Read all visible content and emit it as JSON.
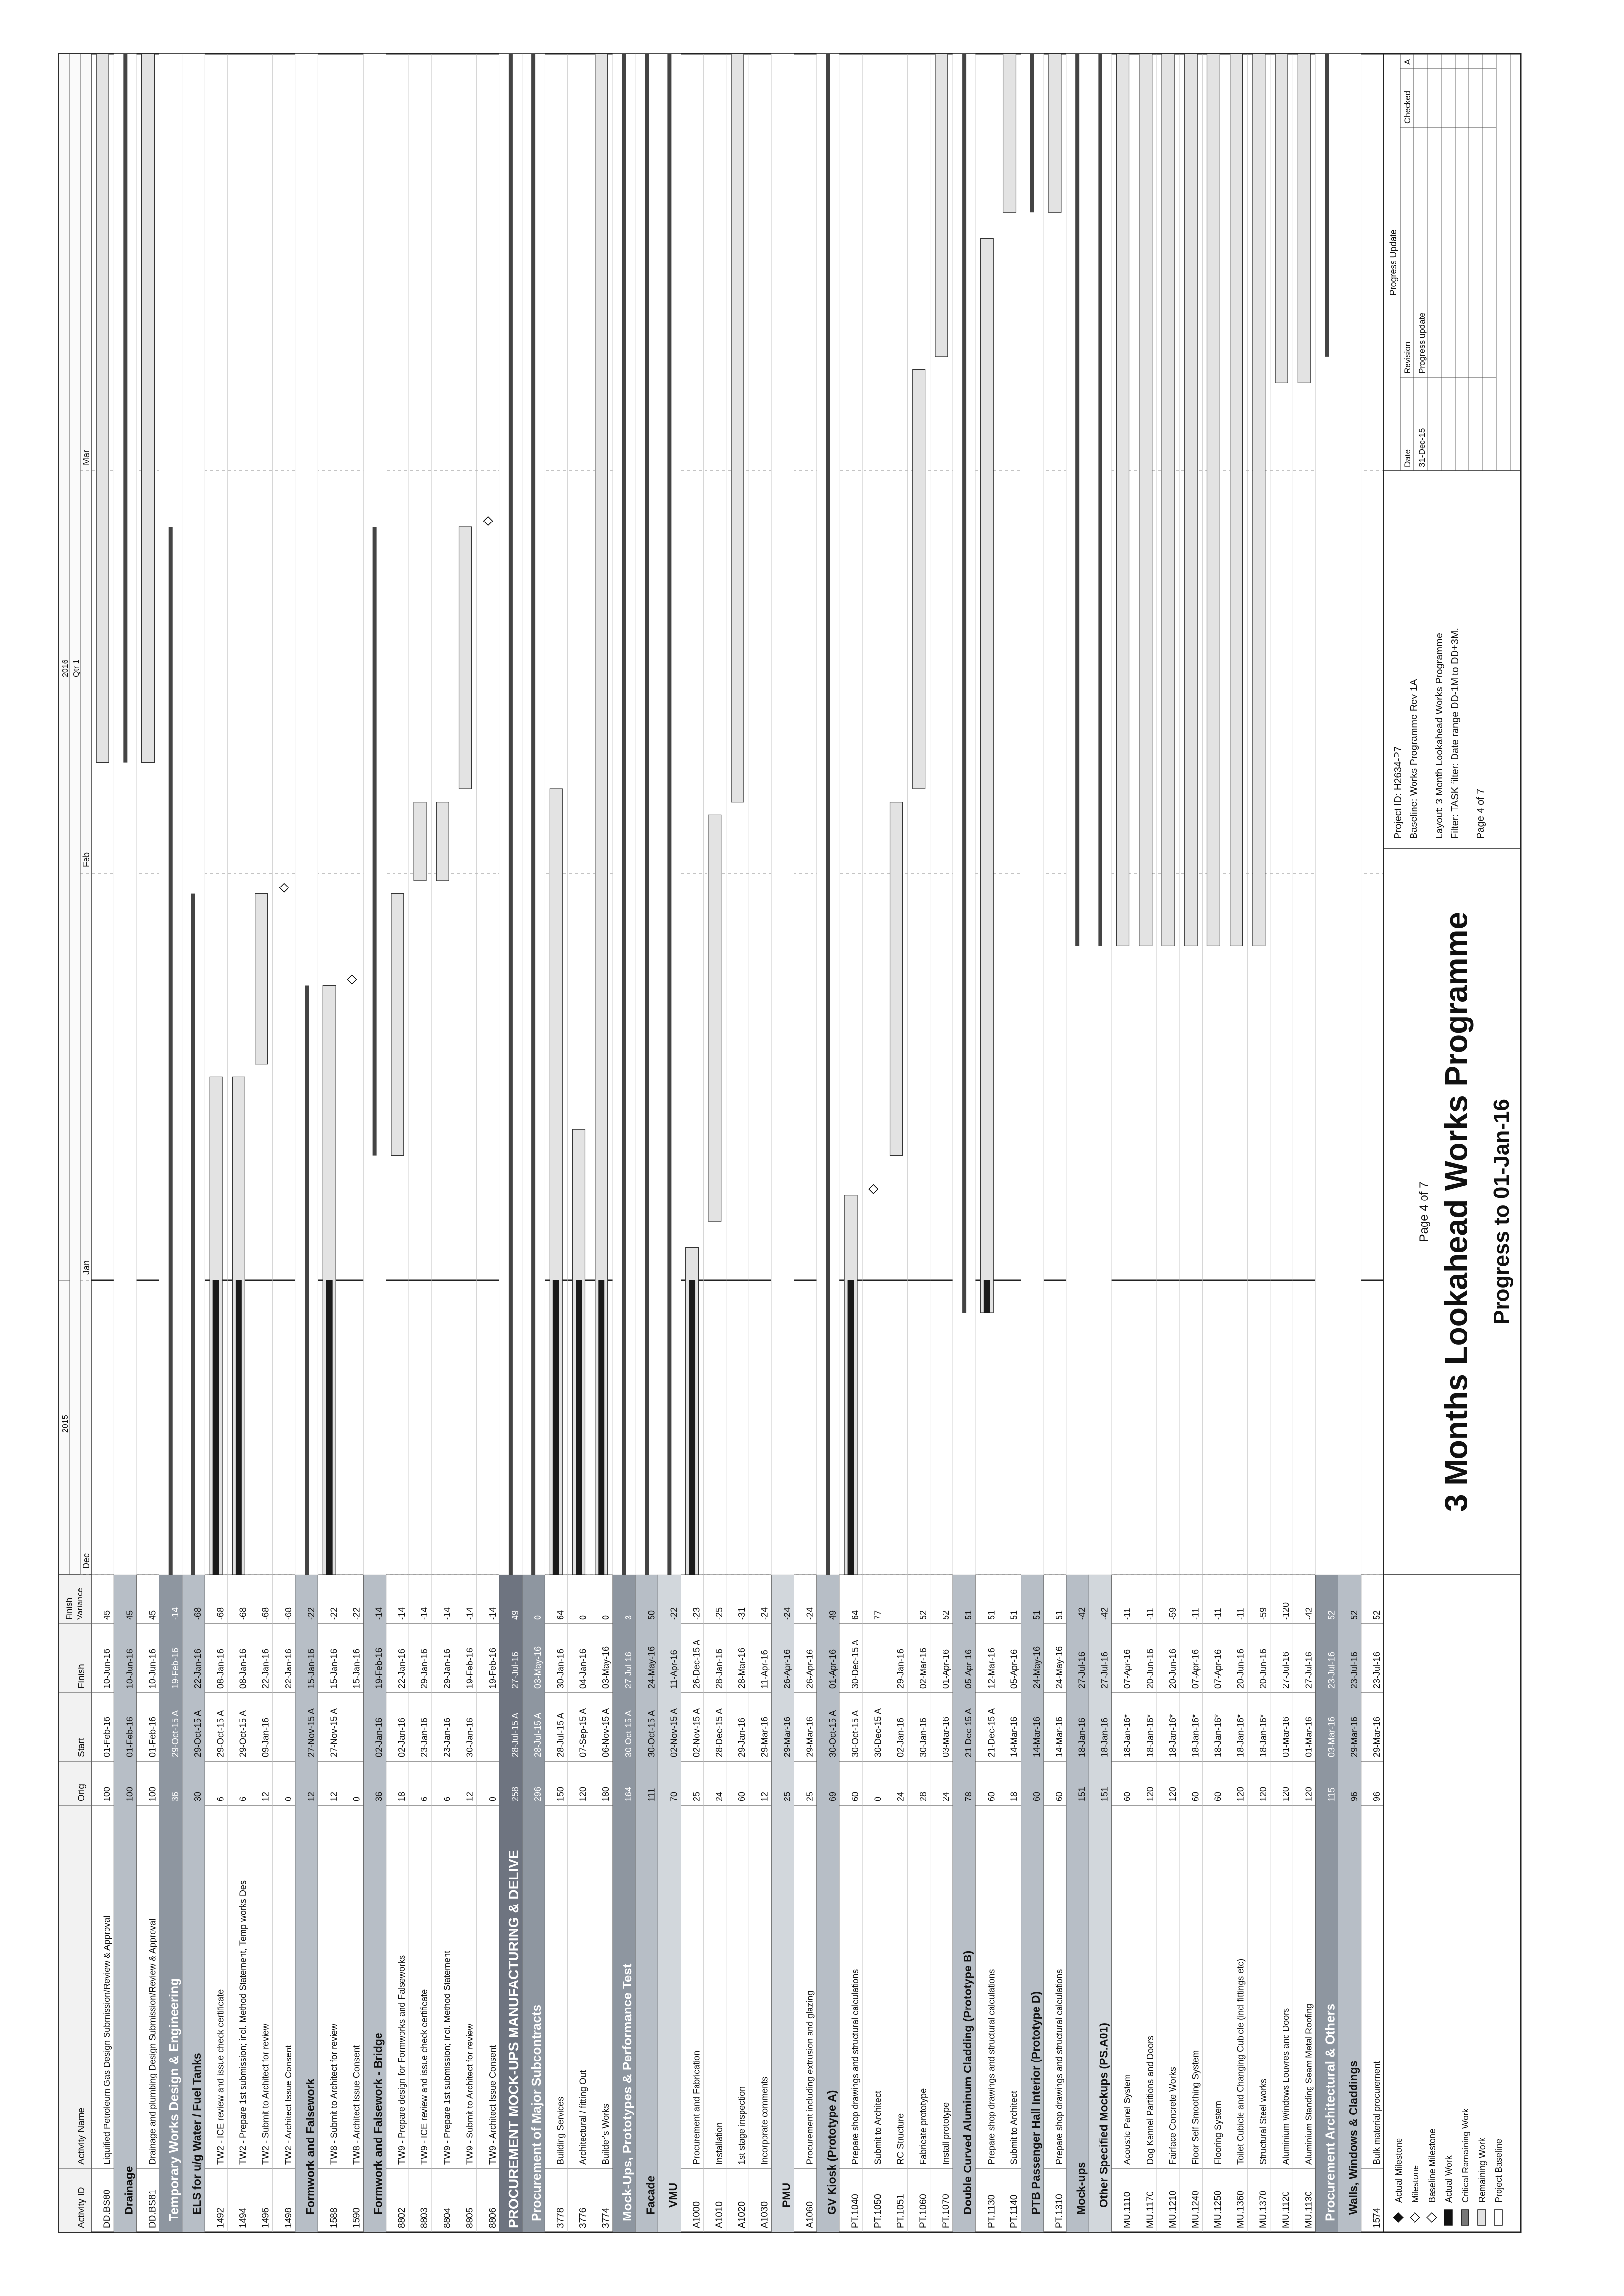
{
  "columns": {
    "activity_id": "Activity ID",
    "activity_name": "Activity Name",
    "orig": "Orig",
    "start": "Start",
    "finish": "Finish",
    "variance": "Finish Variance"
  },
  "timeline": {
    "years": [
      "2015",
      "2016"
    ],
    "qtr": "Qtr 1",
    "months": [
      "Dec",
      "Jan",
      "Feb",
      "Mar"
    ]
  },
  "rows": [
    {
      "type": "activity",
      "id": "DD.BS80",
      "name": "Liquified Petroleum Gas Design Submission/Review & Approval",
      "orig": "100",
      "start": "01-Feb-16",
      "finish": "10-Jun-16",
      "variance": "45"
    },
    {
      "type": "group",
      "level": 2,
      "name": "Drainage",
      "orig": "100",
      "start": "01-Feb-16",
      "finish": "10-Jun-16",
      "variance": "45"
    },
    {
      "type": "activity",
      "id": "DD.BS81",
      "name": "Drainage and plumbing Design Submission/Review & Approval",
      "orig": "100",
      "start": "01-Feb-16",
      "finish": "10-Jun-16",
      "variance": "45"
    },
    {
      "type": "group",
      "level": 1,
      "name": "Temporary Works Design & Engineering",
      "orig": "36",
      "start": "29-Oct-15 A",
      "finish": "19-Feb-16",
      "variance": "-14"
    },
    {
      "type": "group",
      "level": 2,
      "name": "ELS for u/g Water / Fuel Tanks",
      "orig": "30",
      "start": "29-Oct-15 A",
      "finish": "22-Jan-16",
      "variance": "-68"
    },
    {
      "type": "activity",
      "id": "1492",
      "name": "TW2 - ICE review and issue check certificate",
      "orig": "6",
      "start": "29-Oct-15 A",
      "finish": "08-Jan-16",
      "variance": "-68"
    },
    {
      "type": "activity",
      "id": "1494",
      "name": "TW2 - Prepare 1st submission; incl. Method Statement, Temp works Des",
      "orig": "6",
      "start": "29-Oct-15 A",
      "finish": "08-Jan-16",
      "variance": "-68"
    },
    {
      "type": "activity",
      "id": "1496",
      "name": "TW2 - Submit to Architect for review",
      "orig": "12",
      "start": "09-Jan-16",
      "finish": "22-Jan-16",
      "variance": "-68"
    },
    {
      "type": "activity",
      "id": "1498",
      "name": "TW2 - Architect Issue Consent",
      "orig": "0",
      "start": "",
      "finish": "22-Jan-16",
      "variance": "-68"
    },
    {
      "type": "group",
      "level": 2,
      "name": "Formwork and Falsework",
      "orig": "12",
      "start": "27-Nov-15 A",
      "finish": "15-Jan-16",
      "variance": "-22"
    },
    {
      "type": "activity",
      "id": "1588",
      "name": "TW8 - Submit to Architect for review",
      "orig": "12",
      "start": "27-Nov-15 A",
      "finish": "15-Jan-16",
      "variance": "-22"
    },
    {
      "type": "activity",
      "id": "1590",
      "name": "TW8 - Architect Issue Consent",
      "orig": "0",
      "start": "",
      "finish": "15-Jan-16",
      "variance": "-22"
    },
    {
      "type": "group",
      "level": 2,
      "name": "Formwork and Falsework - Bridge",
      "orig": "36",
      "start": "02-Jan-16",
      "finish": "19-Feb-16",
      "variance": "-14"
    },
    {
      "type": "activity",
      "id": "8802",
      "name": "TW9 - Prepare design for Formworks and Falseworks",
      "orig": "18",
      "start": "02-Jan-16",
      "finish": "22-Jan-16",
      "variance": "-14"
    },
    {
      "type": "activity",
      "id": "8803",
      "name": "TW9 - ICE review and issue check certificate",
      "orig": "6",
      "start": "23-Jan-16",
      "finish": "29-Jan-16",
      "variance": "-14"
    },
    {
      "type": "activity",
      "id": "8804",
      "name": "TW9 - Prepare 1st submission; incl. Method Statement",
      "orig": "6",
      "start": "23-Jan-16",
      "finish": "29-Jan-16",
      "variance": "-14"
    },
    {
      "type": "activity",
      "id": "8805",
      "name": "TW9 - Submit to Architect for review",
      "orig": "12",
      "start": "30-Jan-16",
      "finish": "19-Feb-16",
      "variance": "-14"
    },
    {
      "type": "activity",
      "id": "8806",
      "name": "TW9 - Architect Issue Consent",
      "orig": "0",
      "start": "",
      "finish": "19-Feb-16",
      "variance": "-14"
    },
    {
      "type": "group",
      "level": 0,
      "name": "PROCUREMENT MOCK-UPS MANUFACTURING & DELIVE",
      "orig": "258",
      "start": "28-Jul-15 A",
      "finish": "27-Jul-16",
      "variance": "49"
    },
    {
      "type": "group",
      "level": 1,
      "name": "Procurement of Major Subcontracts",
      "orig": "296",
      "start": "28-Jul-15 A",
      "finish": "03-May-16",
      "variance": "0"
    },
    {
      "type": "activity",
      "id": "3778",
      "name": "Building Services",
      "orig": "150",
      "start": "28-Jul-15 A",
      "finish": "30-Jan-16",
      "variance": "64"
    },
    {
      "type": "activity",
      "id": "3776",
      "name": "Architectural / fitting Out",
      "orig": "120",
      "start": "07-Sep-15 A",
      "finish": "04-Jan-16",
      "variance": "0"
    },
    {
      "type": "activity",
      "id": "3774",
      "name": "Builder's Works",
      "orig": "180",
      "start": "06-Nov-15 A",
      "finish": "03-May-16",
      "variance": "0"
    },
    {
      "type": "group",
      "level": 1,
      "name": "Mock-Ups, Prototypes & Performance Test",
      "orig": "164",
      "start": "30-Oct-15 A",
      "finish": "27-Jul-16",
      "variance": "3"
    },
    {
      "type": "group",
      "level": 2,
      "name": "Facade",
      "orig": "111",
      "start": "30-Oct-15 A",
      "finish": "24-May-16",
      "variance": "50"
    },
    {
      "type": "group",
      "level": 3,
      "name": "VMU",
      "orig": "70",
      "start": "02-Nov-15 A",
      "finish": "11-Apr-16",
      "variance": "-22"
    },
    {
      "type": "activity",
      "id": "A1000",
      "name": "Procurement and Fabrication",
      "orig": "25",
      "start": "02-Nov-15 A",
      "finish": "26-Dec-15 A",
      "variance": "-23"
    },
    {
      "type": "activity",
      "id": "A1010",
      "name": "Installation",
      "orig": "24",
      "start": "28-Dec-15 A",
      "finish": "28-Jan-16",
      "variance": "-25"
    },
    {
      "type": "activity",
      "id": "A1020",
      "name": "1st stage inspection",
      "orig": "60",
      "start": "29-Jan-16",
      "finish": "28-Mar-16",
      "variance": "-31"
    },
    {
      "type": "activity",
      "id": "A1030",
      "name": "Incorporate comments",
      "orig": "12",
      "start": "29-Mar-16",
      "finish": "11-Apr-16",
      "variance": "-24"
    },
    {
      "type": "group",
      "level": 3,
      "name": "PMU",
      "orig": "25",
      "start": "29-Mar-16",
      "finish": "26-Apr-16",
      "variance": "-24"
    },
    {
      "type": "activity",
      "id": "A1060",
      "name": "Procurement including extrusion and glazing",
      "orig": "25",
      "start": "29-Mar-16",
      "finish": "26-Apr-16",
      "variance": "-24"
    },
    {
      "type": "group",
      "level": 2,
      "name": "GV Kiosk (Prototype A)",
      "orig": "69",
      "start": "30-Oct-15 A",
      "finish": "01-Apr-16",
      "variance": "49"
    },
    {
      "type": "activity",
      "id": "PT.1040",
      "name": "Prepare shop drawings and structural calculations",
      "orig": "60",
      "start": "30-Oct-15 A",
      "finish": "30-Dec-15 A",
      "variance": "64"
    },
    {
      "type": "activity",
      "id": "PT.1050",
      "name": "Submit to Architect",
      "orig": "0",
      "start": "30-Dec-15 A",
      "finish": "",
      "variance": "77"
    },
    {
      "type": "activity",
      "id": "PT.1051",
      "name": "RC Structure",
      "orig": "24",
      "start": "02-Jan-16",
      "finish": "29-Jan-16",
      "variance": ""
    },
    {
      "type": "activity",
      "id": "PT.1060",
      "name": "Fabricate prototype",
      "orig": "28",
      "start": "30-Jan-16",
      "finish": "02-Mar-16",
      "variance": "52"
    },
    {
      "type": "activity",
      "id": "PT.1070",
      "name": "Install prototype",
      "orig": "24",
      "start": "03-Mar-16",
      "finish": "01-Apr-16",
      "variance": "52"
    },
    {
      "type": "group",
      "level": 2,
      "name": "Double Curved Aluminum Cladding (Prototype B)",
      "orig": "78",
      "start": "21-Dec-15 A",
      "finish": "05-Apr-16",
      "variance": "51"
    },
    {
      "type": "activity",
      "id": "PT.1130",
      "name": "Prepare shop drawings and structural calculations",
      "orig": "60",
      "start": "21-Dec-15 A",
      "finish": "12-Mar-16",
      "variance": "51"
    },
    {
      "type": "activity",
      "id": "PT.1140",
      "name": "Submit to Architect",
      "orig": "18",
      "start": "14-Mar-16",
      "finish": "05-Apr-16",
      "variance": "51"
    },
    {
      "type": "group",
      "level": 2,
      "name": "PTB Passenger Hall Interior (Prototype D)",
      "orig": "60",
      "start": "14-Mar-16",
      "finish": "24-May-16",
      "variance": "51"
    },
    {
      "type": "activity",
      "id": "PT.1310",
      "name": "Prepare shop drawings and structural calculations",
      "orig": "60",
      "start": "14-Mar-16",
      "finish": "24-May-16",
      "variance": "51"
    },
    {
      "type": "group",
      "level": 2,
      "name": "Mock-ups",
      "orig": "151",
      "start": "18-Jan-16",
      "finish": "27-Jul-16",
      "variance": "-42"
    },
    {
      "type": "group",
      "level": 3,
      "name": "Other Specified Mockups (PS.A01)",
      "orig": "151",
      "start": "18-Jan-16",
      "finish": "27-Jul-16",
      "variance": "-42"
    },
    {
      "type": "activity",
      "id": "MU.1110",
      "name": "Acoustic Panel System",
      "orig": "60",
      "start": "18-Jan-16*",
      "finish": "07-Apr-16",
      "variance": "-11"
    },
    {
      "type": "activity",
      "id": "MU.1170",
      "name": "Dog Kennel Partitions and Doors",
      "orig": "120",
      "start": "18-Jan-16*",
      "finish": "20-Jun-16",
      "variance": "-11"
    },
    {
      "type": "activity",
      "id": "MU.1210",
      "name": "Fairface Concrete Works",
      "orig": "120",
      "start": "18-Jan-16*",
      "finish": "20-Jun-16",
      "variance": "-59"
    },
    {
      "type": "activity",
      "id": "MU.1240",
      "name": "Floor Self Smoothing System",
      "orig": "60",
      "start": "18-Jan-16*",
      "finish": "07-Apr-16",
      "variance": "-11"
    },
    {
      "type": "activity",
      "id": "MU.1250",
      "name": "Flooring System",
      "orig": "60",
      "start": "18-Jan-16*",
      "finish": "07-Apr-16",
      "variance": "-11"
    },
    {
      "type": "activity",
      "id": "MU.1360",
      "name": "Toilet Cubicle and Changing Cubicle (incl fittings etc)",
      "orig": "120",
      "start": "18-Jan-16*",
      "finish": "20-Jun-16",
      "variance": "-11"
    },
    {
      "type": "activity",
      "id": "MU.1370",
      "name": "Structural Steel works",
      "orig": "120",
      "start": "18-Jan-16*",
      "finish": "20-Jun-16",
      "variance": "-59"
    },
    {
      "type": "activity",
      "id": "MU.1120",
      "name": "Aluminium Windows Louvres and Doors",
      "orig": "120",
      "start": "01-Mar-16",
      "finish": "27-Jul-16",
      "variance": "-120"
    },
    {
      "type": "activity",
      "id": "MU.1130",
      "name": "Aluminium Standing Seam Metal Roofing",
      "orig": "120",
      "start": "01-Mar-16",
      "finish": "27-Jul-16",
      "variance": "-42"
    },
    {
      "type": "group",
      "level": 1,
      "name": "Procurement Architectural & Others",
      "orig": "115",
      "start": "03-Mar-16",
      "finish": "23-Jul-16",
      "variance": "52"
    },
    {
      "type": "group",
      "level": 2,
      "name": "Walls, Windows & Claddings",
      "orig": "96",
      "start": "29-Mar-16",
      "finish": "23-Jul-16",
      "variance": "52"
    },
    {
      "type": "activity",
      "id": "1574",
      "name": "Bulk material procurement",
      "orig": "96",
      "start": "29-Mar-16",
      "finish": "23-Jul-16",
      "variance": "52"
    }
  ],
  "legend": {
    "items": [
      "Actual Milestone",
      "Milestone",
      "Baseline Milestone",
      "Actual Work",
      "Critical Remaining Work",
      "Remaining Work",
      "Project Baseline"
    ]
  },
  "page_label": "Page 4 of 7",
  "title": "3 Months Lookahead Works Programme",
  "subtitle": "Progress to 01-Jan-16",
  "project_info": [
    "Project ID: H2634-P7",
    "Baseline: Works Programme Rev 1A",
    "Layout: 3 Month Lookahead Works Programme",
    "Filter: TASK filter: Date range DD-1M to DD+3M.",
    "Page 4 of 7"
  ],
  "revision": {
    "header": "Progress Update",
    "cols": [
      "Date",
      "Revision",
      "Checked",
      "A"
    ],
    "row": [
      "31-Dec-15",
      "Progress update"
    ]
  },
  "colors": {
    "group0": "#6e7480",
    "group1": "#8e96a0",
    "group2": "#b7bec6",
    "group3": "#d2d7dc",
    "bar_fill": "#e3e3e3",
    "actual": "#1a1a1a"
  }
}
